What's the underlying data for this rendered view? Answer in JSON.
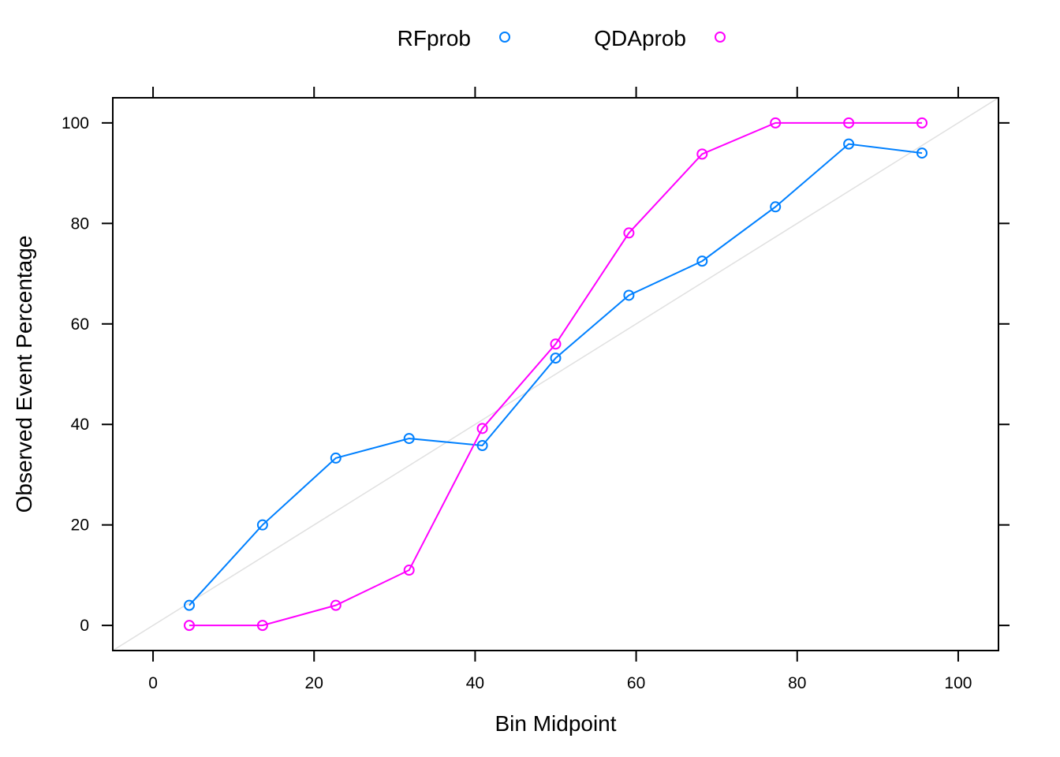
{
  "chart_data": {
    "type": "line",
    "xlabel": "Bin Midpoint",
    "ylabel": "Observed Event Percentage",
    "xlim": [
      -5,
      105
    ],
    "ylim": [
      -5,
      105
    ],
    "x_ticks": [
      0,
      20,
      40,
      60,
      80,
      100
    ],
    "y_ticks": [
      0,
      20,
      40,
      60,
      80,
      100
    ],
    "x_tick_labels": [
      "0",
      "20",
      "40",
      "60",
      "80",
      "100"
    ],
    "y_tick_labels": [
      "0",
      "20",
      "40",
      "60",
      "80",
      "100"
    ],
    "reference_line": {
      "from": [
        -5,
        -5
      ],
      "to": [
        105,
        105
      ],
      "color": "#e0e0e0"
    },
    "grid": false,
    "legend": {
      "position": "top",
      "entries": [
        "RFprob",
        "QDAprob"
      ]
    },
    "x": [
      4.5,
      13.6,
      22.7,
      31.8,
      40.9,
      50.0,
      59.1,
      68.2,
      77.3,
      86.4,
      95.5
    ],
    "series": [
      {
        "name": "RFprob",
        "color": "#0080ff",
        "values": [
          4.0,
          20.0,
          33.3,
          37.2,
          35.8,
          53.2,
          65.7,
          72.5,
          83.3,
          95.8,
          94.0
        ]
      },
      {
        "name": "QDAprob",
        "color": "#ff00ff",
        "values": [
          0.0,
          0.0,
          4.0,
          11.0,
          39.2,
          56.0,
          78.1,
          93.8,
          100.0,
          100.0,
          100.0
        ]
      }
    ]
  }
}
